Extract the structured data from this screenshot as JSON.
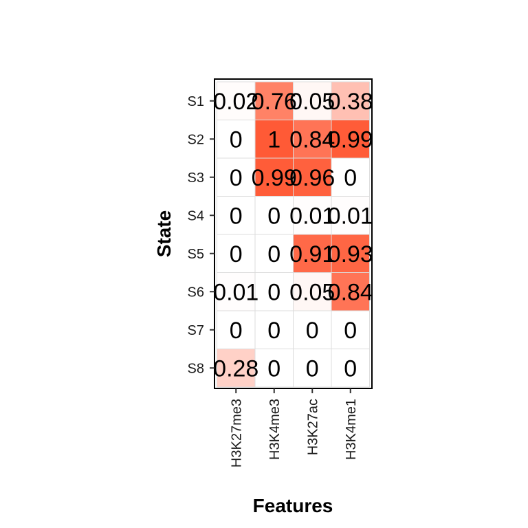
{
  "chart_data": {
    "type": "heatmap",
    "xlabel": "Features",
    "ylabel": "State",
    "x_categories": [
      "H3K27me3",
      "H3K4me3",
      "H3K27ac",
      "H3K4me1"
    ],
    "y_categories": [
      "S1",
      "S2",
      "S3",
      "S4",
      "S5",
      "S6",
      "S7",
      "S8"
    ],
    "values": [
      [
        0.02,
        0.76,
        0.05,
        0.38
      ],
      [
        0,
        1,
        0.84,
        0.99
      ],
      [
        0,
        0.99,
        0.96,
        0
      ],
      [
        0,
        0,
        0.01,
        0.01
      ],
      [
        0,
        0,
        0.91,
        0.93
      ],
      [
        0.01,
        0,
        0.05,
        0.84
      ],
      [
        0,
        0,
        0,
        0
      ],
      [
        0.28,
        0,
        0,
        0
      ]
    ],
    "labels": [
      [
        "0.02",
        "0.76",
        "0.05",
        "0.38"
      ],
      [
        "0",
        "1",
        "0.84",
        "0.99"
      ],
      [
        "0",
        "0.99",
        "0.96",
        "0"
      ],
      [
        "0",
        "0",
        "0.01",
        "0.01"
      ],
      [
        "0",
        "0",
        "0.91",
        "0.93"
      ],
      [
        "0.01",
        "0",
        "0.05",
        "0.84"
      ],
      [
        "0",
        "0",
        "0",
        "0"
      ],
      [
        "0.28",
        "0",
        "0",
        "0"
      ]
    ],
    "color_low": "#ffffff",
    "color_high": "#ff5a36",
    "grid": true,
    "legend": "none"
  }
}
